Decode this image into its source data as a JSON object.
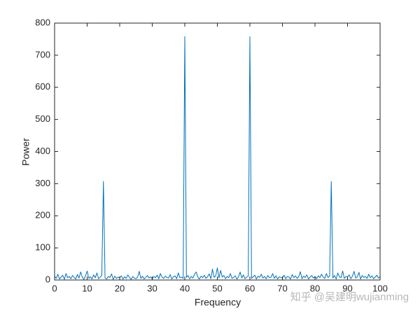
{
  "chart_data": {
    "type": "line",
    "xlabel": "Frequency",
    "ylabel": "Power",
    "watermark": "知乎 @吴建明wujianming",
    "xlim": [
      0,
      100
    ],
    "ylim": [
      0,
      800
    ],
    "xticks": [
      0,
      10,
      20,
      30,
      40,
      50,
      60,
      70,
      80,
      90,
      100
    ],
    "yticks": [
      0,
      100,
      200,
      300,
      400,
      500,
      600,
      700,
      800
    ],
    "x": [
      0,
      0.5,
      1,
      1.5,
      2,
      2.5,
      3,
      3.5,
      4,
      4.5,
      5,
      5.5,
      6,
      6.5,
      7,
      7.5,
      8,
      8.5,
      9,
      9.5,
      10,
      10.5,
      11,
      11.5,
      12,
      12.5,
      13,
      13.5,
      14,
      14.5,
      15,
      15.5,
      16,
      16.5,
      17,
      17.5,
      18,
      18.5,
      19,
      19.5,
      20,
      20.5,
      21,
      21.5,
      22,
      22.5,
      23,
      23.5,
      24,
      24.5,
      25,
      25.5,
      26,
      26.5,
      27,
      27.5,
      28,
      28.5,
      29,
      29.5,
      30,
      30.5,
      31,
      31.5,
      32,
      32.5,
      33,
      33.5,
      34,
      34.5,
      35,
      35.5,
      36,
      36.5,
      37,
      37.5,
      38,
      38.5,
      39,
      39.5,
      40,
      40.5,
      41,
      41.5,
      42,
      42.5,
      43,
      43.5,
      44,
      44.5,
      45,
      45.5,
      46,
      46.5,
      47,
      47.5,
      48,
      48.5,
      49,
      49.5,
      50,
      50.5,
      51,
      51.5,
      52,
      52.5,
      53,
      53.5,
      54,
      54.5,
      55,
      55.5,
      56,
      56.5,
      57,
      57.5,
      58,
      58.5,
      59,
      59.5,
      60,
      60.5,
      61,
      61.5,
      62,
      62.5,
      63,
      63.5,
      64,
      64.5,
      65,
      65.5,
      66,
      66.5,
      67,
      67.5,
      68,
      68.5,
      69,
      69.5,
      70,
      70.5,
      71,
      71.5,
      72,
      72.5,
      73,
      73.5,
      74,
      74.5,
      75,
      75.5,
      76,
      76.5,
      77,
      77.5,
      78,
      78.5,
      79,
      79.5,
      80,
      80.5,
      81,
      81.5,
      82,
      82.5,
      83,
      83.5,
      84,
      84.5,
      85,
      85.5,
      86,
      86.5,
      87,
      87.5,
      88,
      88.5,
      89,
      89.5,
      90,
      90.5,
      91,
      91.5,
      92,
      92.5,
      93,
      93.5,
      94,
      94.5,
      95,
      95.5,
      96,
      96.5,
      97,
      97.5,
      98,
      98.5,
      99,
      99.5,
      100
    ],
    "series": [
      {
        "color": "#0072bd",
        "values": [
          12,
          5,
          18,
          3,
          9,
          15,
          2,
          20,
          7,
          11,
          4,
          14,
          8,
          3,
          17,
          6,
          25,
          9,
          2,
          13,
          28,
          5,
          10,
          3,
          16,
          7,
          22,
          4,
          9,
          14,
          307,
          6,
          3,
          11,
          8,
          19,
          2,
          12,
          5,
          9,
          7,
          13,
          3,
          10,
          5,
          16,
          8,
          2,
          11,
          6,
          4,
          9,
          27,
          5,
          12,
          3,
          8,
          14,
          6,
          10,
          3,
          11,
          7,
          15,
          4,
          20,
          9,
          5,
          12,
          8,
          6,
          17,
          3,
          10,
          13,
          4,
          22,
          7,
          9,
          5,
          758,
          8,
          14,
          4,
          11,
          6,
          18,
          25,
          9,
          3,
          12,
          7,
          15,
          5,
          10,
          19,
          4,
          34,
          8,
          13,
          38,
          6,
          30,
          9,
          14,
          4,
          11,
          7,
          20,
          5,
          8,
          13,
          3,
          10,
          25,
          6,
          16,
          4,
          9,
          12,
          758,
          5,
          10,
          15,
          3,
          12,
          8,
          18,
          6,
          11,
          4,
          14,
          7,
          9,
          20,
          5,
          13,
          3,
          10,
          8,
          6,
          15,
          4,
          11,
          9,
          3,
          17,
          7,
          13,
          5,
          10,
          26,
          4,
          12,
          8,
          16,
          3,
          9,
          14,
          6,
          11,
          4,
          13,
          7,
          18,
          9,
          5,
          20,
          8,
          12,
          307,
          6,
          14,
          3,
          22,
          10,
          7,
          28,
          5,
          11,
          9,
          16,
          4,
          12,
          27,
          6,
          10,
          24,
          3,
          14,
          8,
          11,
          5,
          18,
          7,
          13,
          4,
          9,
          15,
          6,
          10
        ]
      }
    ]
  }
}
